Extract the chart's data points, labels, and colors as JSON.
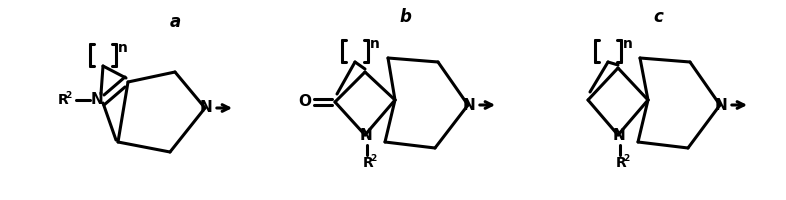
{
  "bg_color": "#ffffff",
  "line_color": "#000000",
  "lw": 2.2,
  "label_a": "a",
  "label_b": "b",
  "label_c": "c"
}
